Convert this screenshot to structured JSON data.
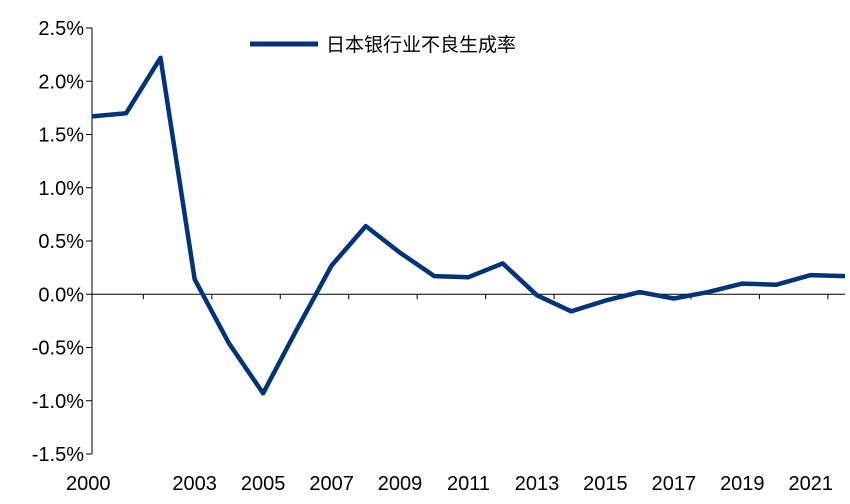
{
  "chart_data": {
    "type": "line",
    "title": "",
    "xlabel": "",
    "ylabel": "",
    "x": [
      2000,
      2001,
      2002,
      2003,
      2004,
      2005,
      2006,
      2007,
      2008,
      2009,
      2010,
      2011,
      2012,
      2013,
      2014,
      2015,
      2016,
      2017,
      2018,
      2019,
      2020,
      2021,
      2022
    ],
    "x_tick_labels": [
      "2000",
      "2003",
      "2005",
      "2007",
      "2009",
      "2011",
      "2013",
      "2015",
      "2017",
      "2019",
      "2021"
    ],
    "y_tick_labels": [
      "2.5%",
      "2.0%",
      "1.5%",
      "1.0%",
      "0.5%",
      "0.0%",
      "-0.5%",
      "-1.0%",
      "-1.5%"
    ],
    "ylim": [
      -1.5,
      2.5
    ],
    "grid": false,
    "legend_position": "top-center",
    "series": [
      {
        "name": "日本银行业不良生成率",
        "color": "#003478",
        "values": [
          1.67,
          1.7,
          2.22,
          0.14,
          -0.46,
          -0.93,
          -0.32,
          0.27,
          0.64,
          0.39,
          0.17,
          0.16,
          0.29,
          -0.01,
          -0.16,
          -0.06,
          0.02,
          -0.04,
          0.02,
          0.1,
          0.09,
          0.18,
          0.17
        ]
      }
    ]
  }
}
